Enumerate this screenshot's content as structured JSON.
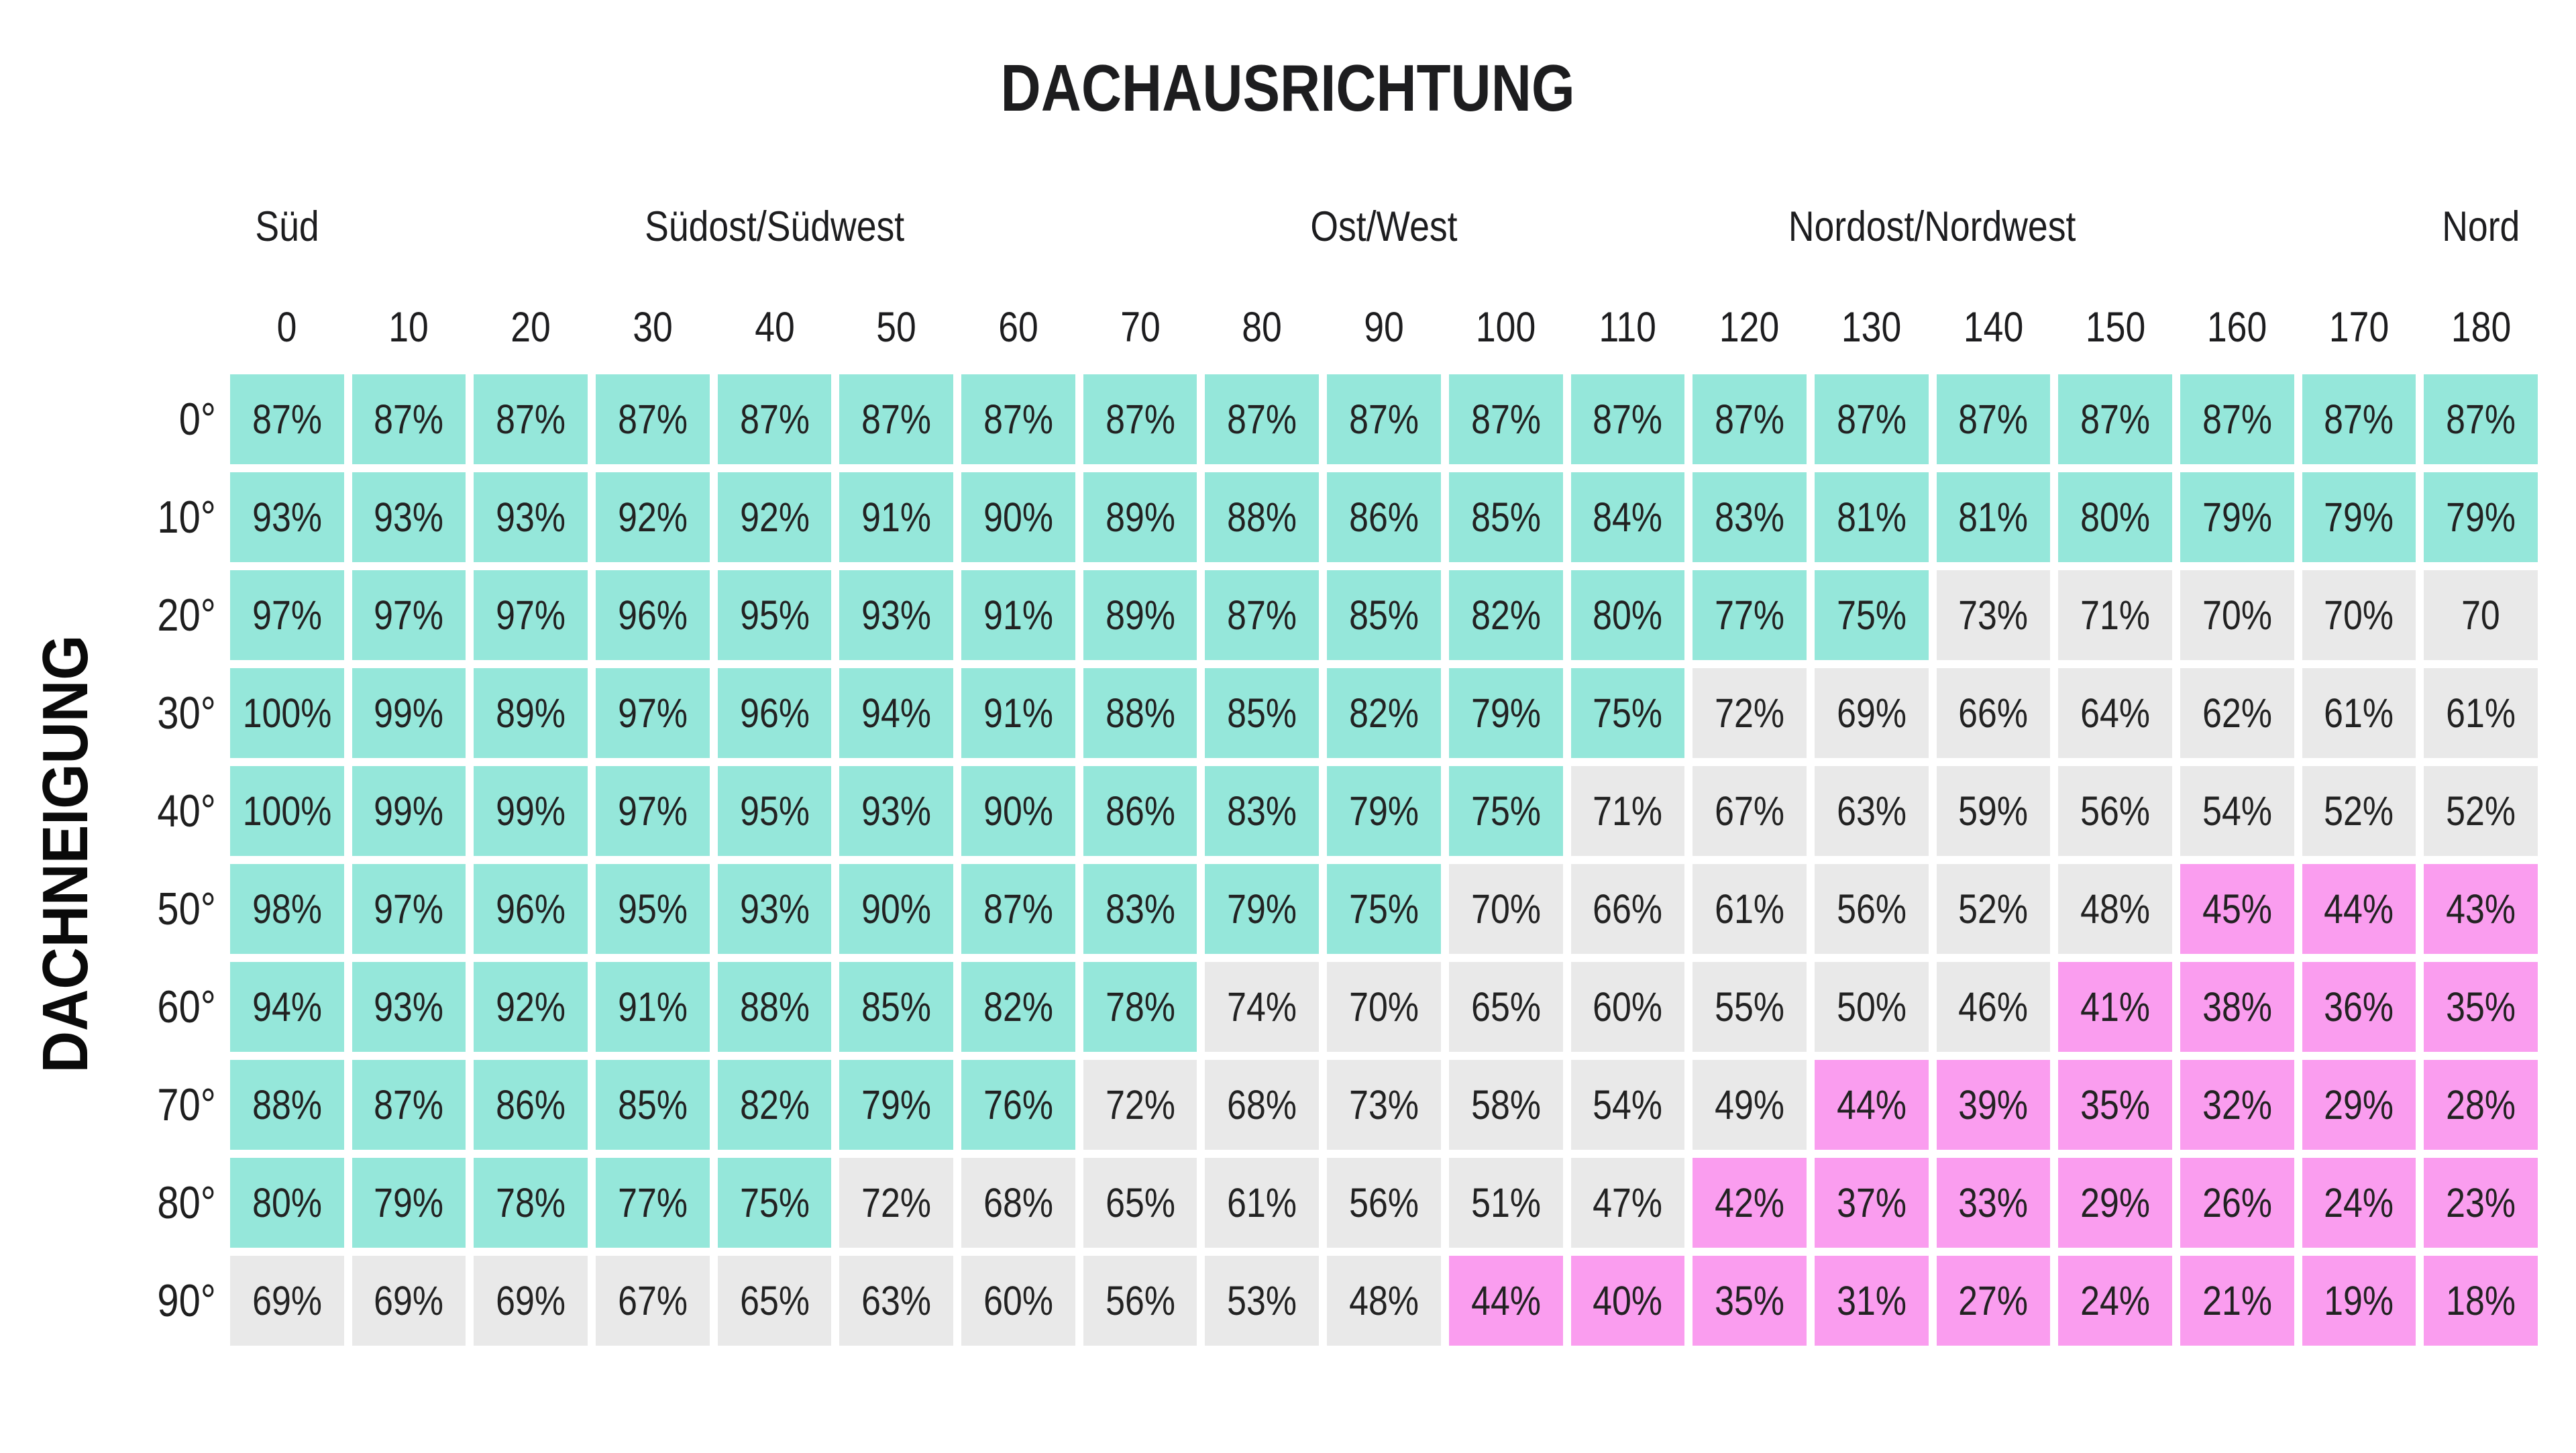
{
  "title": "DACHAUSRICHTUNG",
  "y_axis_label": "DACHNEIGUNG",
  "column_groups": [
    {
      "label": "Süd",
      "col_start": 1,
      "col_span": 1
    },
    {
      "label": "Südost/Südwest",
      "col_start": 2,
      "col_span": 7
    },
    {
      "label": "Ost/West",
      "col_start": 9,
      "col_span": 3
    },
    {
      "label": "Nordost/Nordwest",
      "col_start": 12,
      "col_span": 6
    },
    {
      "label": "Nord",
      "col_start": 19,
      "col_span": 1
    }
  ],
  "colors": {
    "cell_high": "#95E7DA",
    "cell_mid": "#E9E9E9",
    "cell_low": "#FA9DEF",
    "text": "#1E1E1E",
    "background": "#FFFFFF"
  },
  "chart_data": {
    "type": "heatmap",
    "title": "DACHAUSRICHTUNG",
    "xlabel": "DACHAUSRICHTUNG",
    "ylabel": "DACHNEIGUNG",
    "x_categories": [
      "0",
      "10",
      "20",
      "30",
      "40",
      "50",
      "60",
      "70",
      "80",
      "90",
      "100",
      "110",
      "120",
      "130",
      "140",
      "150",
      "160",
      "170",
      "180"
    ],
    "x_group_labels": [
      "Süd",
      "Südost/Südwest",
      "Ost/West",
      "Nordost/Nordwest",
      "Nord"
    ],
    "y_categories": [
      "0°",
      "10°",
      "20°",
      "30°",
      "40°",
      "50°",
      "60°",
      "70°",
      "80°",
      "90°"
    ],
    "values": [
      [
        87,
        87,
        87,
        87,
        87,
        87,
        87,
        87,
        87,
        87,
        87,
        87,
        87,
        87,
        87,
        87,
        87,
        87,
        87
      ],
      [
        93,
        93,
        93,
        92,
        92,
        91,
        90,
        89,
        88,
        86,
        85,
        84,
        83,
        81,
        81,
        80,
        79,
        79,
        79
      ],
      [
        97,
        97,
        97,
        96,
        95,
        93,
        91,
        89,
        87,
        85,
        82,
        80,
        77,
        75,
        73,
        71,
        70,
        70,
        70
      ],
      [
        100,
        99,
        89,
        97,
        96,
        94,
        91,
        88,
        85,
        82,
        79,
        75,
        72,
        69,
        66,
        64,
        62,
        61,
        61
      ],
      [
        100,
        99,
        99,
        97,
        95,
        93,
        90,
        86,
        83,
        79,
        75,
        71,
        67,
        63,
        59,
        56,
        54,
        52,
        52
      ],
      [
        98,
        97,
        96,
        95,
        93,
        90,
        87,
        83,
        79,
        75,
        70,
        66,
        61,
        56,
        52,
        48,
        45,
        44,
        43
      ],
      [
        94,
        93,
        92,
        91,
        88,
        85,
        82,
        78,
        74,
        70,
        65,
        60,
        55,
        50,
        46,
        41,
        38,
        36,
        35
      ],
      [
        88,
        87,
        86,
        85,
        82,
        79,
        76,
        72,
        68,
        73,
        58,
        54,
        49,
        44,
        39,
        35,
        32,
        29,
        28
      ],
      [
        80,
        79,
        78,
        77,
        75,
        72,
        68,
        65,
        61,
        56,
        51,
        47,
        42,
        37,
        33,
        29,
        26,
        24,
        23
      ],
      [
        69,
        69,
        69,
        67,
        65,
        63,
        60,
        56,
        53,
        48,
        44,
        40,
        35,
        31,
        27,
        24,
        21,
        19,
        18
      ]
    ],
    "cell_labels": [
      [
        "87%",
        "87%",
        "87%",
        "87%",
        "87%",
        "87%",
        "87%",
        "87%",
        "87%",
        "87%",
        "87%",
        "87%",
        "87%",
        "87%",
        "87%",
        "87%",
        "87%",
        "87%",
        "87%"
      ],
      [
        "93%",
        "93%",
        "93%",
        "92%",
        "92%",
        "91%",
        "90%",
        "89%",
        "88%",
        "86%",
        "85%",
        "84%",
        "83%",
        "81%",
        "81%",
        "80%",
        "79%",
        "79%",
        "79%"
      ],
      [
        "97%",
        "97%",
        "97%",
        "96%",
        "95%",
        "93%",
        "91%",
        "89%",
        "87%",
        "85%",
        "82%",
        "80%",
        "77%",
        "75%",
        "73%",
        "71%",
        "70%",
        "70%",
        "70"
      ],
      [
        "100%",
        "99%",
        "89%",
        "97%",
        "96%",
        "94%",
        "91%",
        "88%",
        "85%",
        "82%",
        "79%",
        "75%",
        "72%",
        "69%",
        "66%",
        "64%",
        "62%",
        "61%",
        "61%"
      ],
      [
        "100%",
        "99%",
        "99%",
        "97%",
        "95%",
        "93%",
        "90%",
        "86%",
        "83%",
        "79%",
        "75%",
        "71%",
        "67%",
        "63%",
        "59%",
        "56%",
        "54%",
        "52%",
        "52%"
      ],
      [
        "98%",
        "97%",
        "96%",
        "95%",
        "93%",
        "90%",
        "87%",
        "83%",
        "79%",
        "75%",
        "70%",
        "66%",
        "61%",
        "56%",
        "52%",
        "48%",
        "45%",
        "44%",
        "43%"
      ],
      [
        "94%",
        "93%",
        "92%",
        "91%",
        "88%",
        "85%",
        "82%",
        "78%",
        "74%",
        "70%",
        "65%",
        "60%",
        "55%",
        "50%",
        "46%",
        "41%",
        "38%",
        "36%",
        "35%"
      ],
      [
        "88%",
        "87%",
        "86%",
        "85%",
        "82%",
        "79%",
        "76%",
        "72%",
        "68%",
        "73%",
        "58%",
        "54%",
        "49%",
        "44%",
        "39%",
        "35%",
        "32%",
        "29%",
        "28%"
      ],
      [
        "80%",
        "79%",
        "78%",
        "77%",
        "75%",
        "72%",
        "68%",
        "65%",
        "61%",
        "56%",
        "51%",
        "47%",
        "42%",
        "37%",
        "33%",
        "29%",
        "26%",
        "24%",
        "23%"
      ],
      [
        "69%",
        "69%",
        "69%",
        "67%",
        "65%",
        "63%",
        "60%",
        "56%",
        "53%",
        "48%",
        "44%",
        "40%",
        "35%",
        "31%",
        "27%",
        "24%",
        "21%",
        "19%",
        "18%"
      ]
    ],
    "color_scale": [
      {
        "color": "#95E7DA",
        "condition": "value >= 75"
      },
      {
        "color": "#E9E9E9",
        "condition": "46 <= value <= 74"
      },
      {
        "color": "#FA9DEF",
        "condition": "value <= 45"
      }
    ],
    "grid": false,
    "legend_position": "none"
  }
}
